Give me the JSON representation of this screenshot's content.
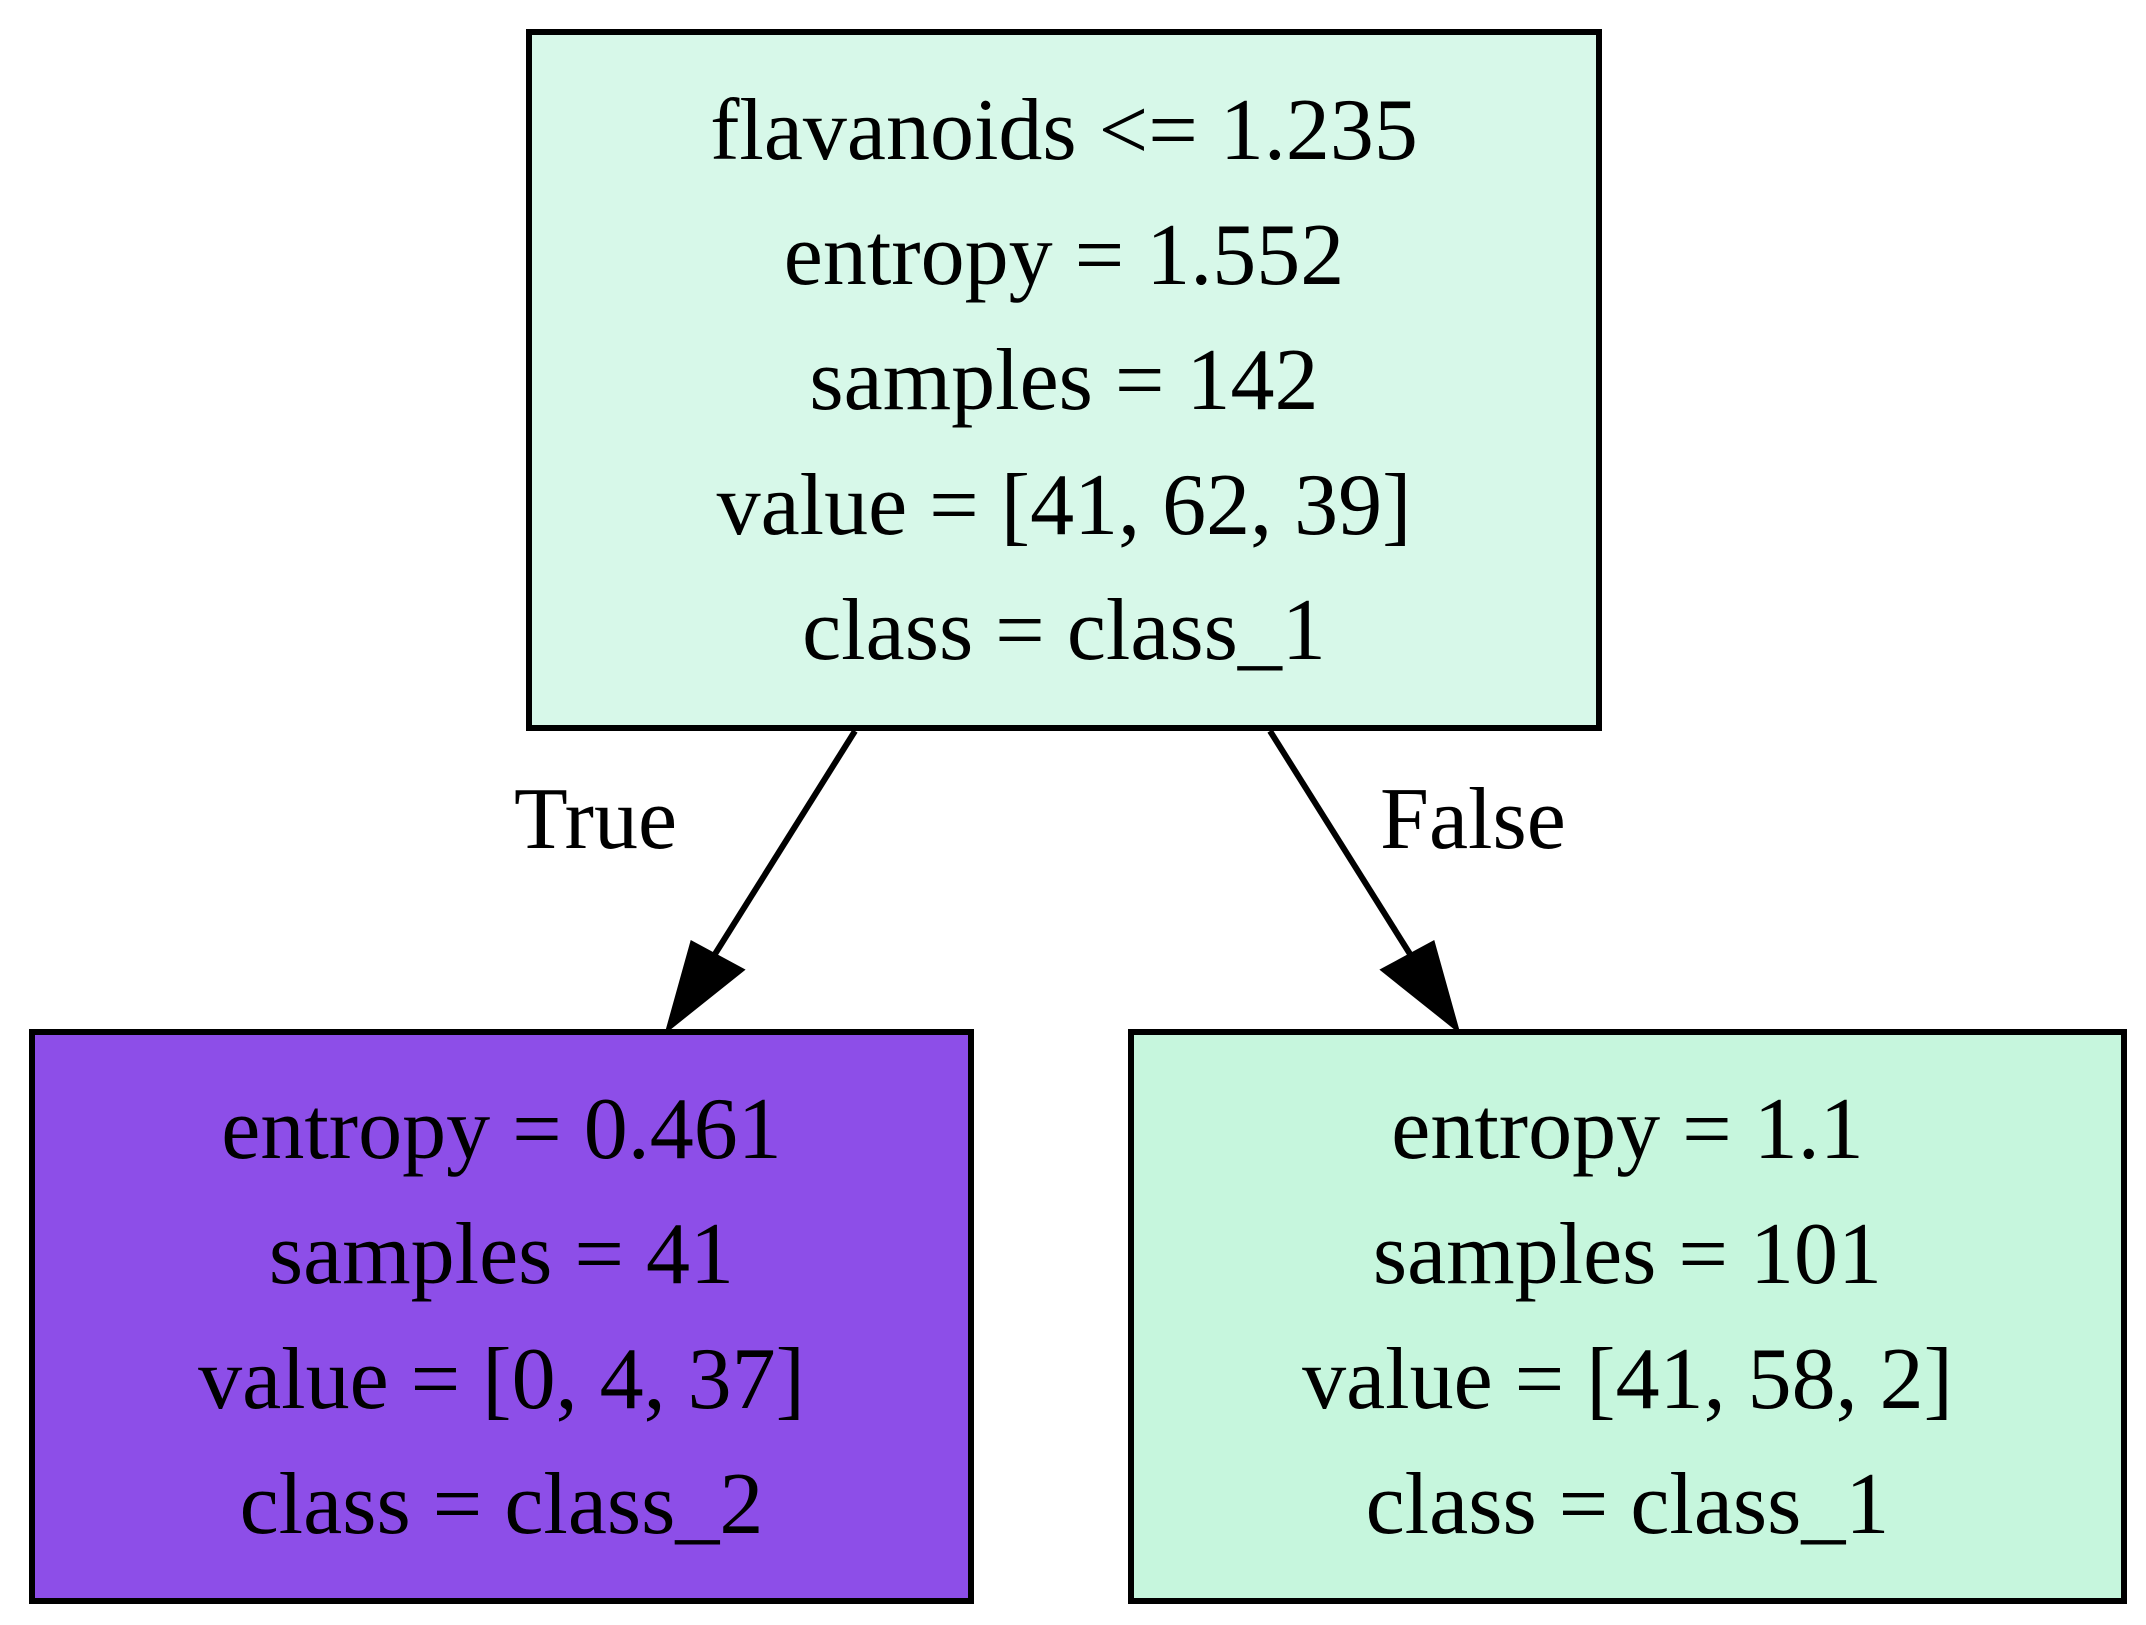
{
  "root": {
    "lines": [
      "flavanoids <= 1.235",
      "entropy = 1.552",
      "samples = 142",
      "value = [41, 62, 39]",
      "class = class_1"
    ],
    "fill": "#d7f8e9"
  },
  "left_leaf": {
    "lines": [
      "entropy = 0.461",
      "samples = 41",
      "value = [0, 4, 37]",
      "class = class_2"
    ],
    "fill": "#8d4ee8"
  },
  "right_leaf": {
    "lines": [
      "entropy = 1.1",
      "samples = 101",
      "value = [41, 58, 2]",
      "class = class_1"
    ],
    "fill": "#c6f6dd"
  },
  "edges": {
    "true_label": "True",
    "false_label": "False"
  }
}
